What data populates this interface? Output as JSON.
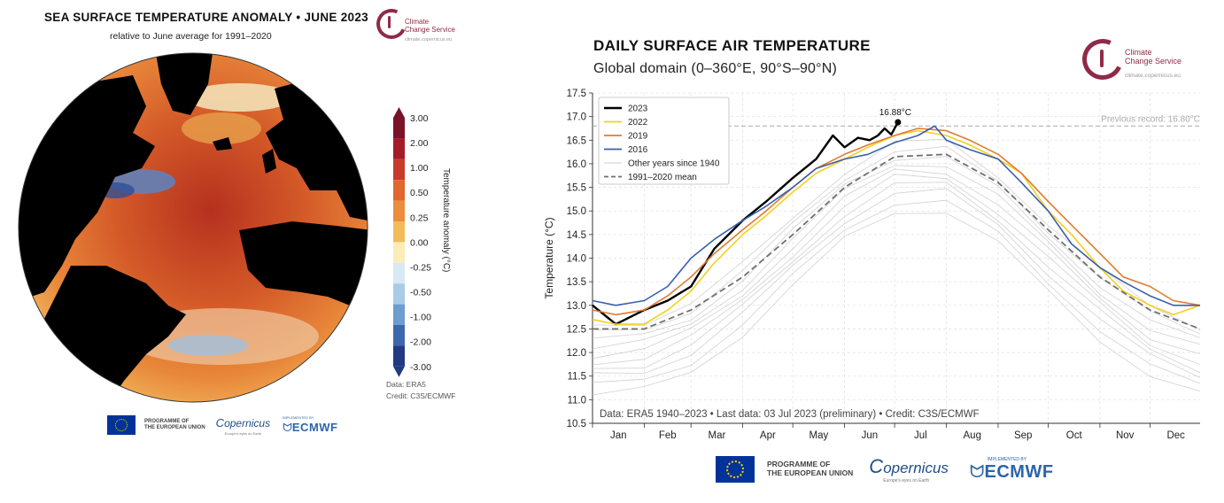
{
  "left": {
    "title": "SEA SURFACE TEMPERATURE ANOMALY • JUNE 2023",
    "subtitle": "relative to June average for 1991–2020",
    "colorbar": {
      "label": "Temperature anomaly (°C)",
      "ticks": [
        "3.00",
        "2.00",
        "1.00",
        "0.50",
        "0.25",
        "0.00",
        "-0.25",
        "-0.50",
        "-1.00",
        "-2.00",
        "-3.00"
      ],
      "colors": [
        "#7a1228",
        "#a61b2a",
        "#c83a2a",
        "#e0672e",
        "#eb8d3c",
        "#f3bc5a",
        "#fbecb8",
        "#d9e8f5",
        "#a9cbe8",
        "#6e9dcf",
        "#3c68ad",
        "#233a80"
      ]
    },
    "data_note": "Data: ERA5",
    "credit_note": "Credit: C3S/ECMWF"
  },
  "c3s": {
    "name_line1": "Climate",
    "name_line2": "Change Service",
    "url": "climate.copernicus.eu"
  },
  "footer": {
    "eu_line1": "PROGRAMME OF",
    "eu_line2": "THE EUROPEAN UNION",
    "copernicus": "opernicus",
    "copernicus_tag": "Europe's eyes on Earth",
    "ecmwf_tag": "IMPLEMENTED BY",
    "ecmwf": "ECMWF"
  },
  "right": {
    "title": "DAILY SURFACE AIR TEMPERATURE",
    "subtitle": "Global domain (0–360°E, 90°S–90°N)",
    "record_label": "Previous record: 16.80°C",
    "peak_label": "16.88°C",
    "bottom_note": "Data: ERA5 1940–2023 • Last data: 03 Jul 2023 (preliminary) • Credit: C3S/ECMWF"
  },
  "chart_data": {
    "type": "line",
    "title": "DAILY SURFACE AIR TEMPERATURE",
    "subtitle": "Global domain (0–360°E, 90°S–90°N)",
    "xlabel": "",
    "ylabel": "Temperature (°C)",
    "ylim": [
      10.5,
      17.5
    ],
    "yticks": [
      "10.5",
      "11.0",
      "11.5",
      "12.0",
      "12.5",
      "13.0",
      "13.5",
      "14.0",
      "14.5",
      "15.0",
      "15.5",
      "16.0",
      "16.5",
      "17.0",
      "17.5"
    ],
    "categories": [
      "Jan",
      "Feb",
      "Mar",
      "Apr",
      "May",
      "Jun",
      "Jul",
      "Aug",
      "Sep",
      "Oct",
      "Nov",
      "Dec"
    ],
    "grid": true,
    "legend_position": "top-left",
    "reference_line": {
      "label": "Previous record: 16.80°C",
      "value": 16.8
    },
    "series": [
      {
        "name": "2023",
        "color": "#000000",
        "x": [
          1,
          15,
          32,
          46,
          60,
          74,
          91,
          105,
          121,
          135,
          145,
          152,
          160,
          167,
          172,
          176,
          180,
          184
        ],
        "values": [
          13.0,
          12.6,
          12.9,
          13.1,
          13.4,
          14.2,
          14.8,
          15.2,
          15.7,
          16.1,
          16.6,
          16.35,
          16.55,
          16.5,
          16.6,
          16.75,
          16.62,
          16.88
        ]
      },
      {
        "name": "2022",
        "color": "#f2d021",
        "x": [
          1,
          15,
          32,
          46,
          60,
          74,
          91,
          105,
          121,
          135,
          152,
          166,
          182,
          196,
          213,
          227,
          244,
          258,
          274,
          288,
          305,
          319,
          335,
          349,
          365
        ],
        "values": [
          12.7,
          12.6,
          12.6,
          12.9,
          13.3,
          13.9,
          14.5,
          14.9,
          15.4,
          15.8,
          16.1,
          16.35,
          16.6,
          16.7,
          16.6,
          16.4,
          16.1,
          15.8,
          15.0,
          14.5,
          13.8,
          13.3,
          13.0,
          12.8,
          13.0
        ]
      },
      {
        "name": "2019",
        "color": "#e07b2e",
        "x": [
          1,
          15,
          32,
          46,
          60,
          74,
          91,
          105,
          121,
          135,
          152,
          166,
          182,
          196,
          213,
          227,
          244,
          258,
          274,
          288,
          305,
          319,
          335,
          349,
          365
        ],
        "values": [
          12.9,
          12.8,
          12.9,
          13.2,
          13.6,
          14.1,
          14.6,
          15.0,
          15.5,
          15.9,
          16.2,
          16.4,
          16.6,
          16.75,
          16.7,
          16.5,
          16.2,
          15.8,
          15.2,
          14.7,
          14.1,
          13.6,
          13.4,
          13.1,
          13.0
        ]
      },
      {
        "name": "2016",
        "color": "#3a5fab",
        "x": [
          1,
          15,
          32,
          46,
          60,
          74,
          91,
          105,
          121,
          135,
          152,
          166,
          182,
          196,
          206,
          213,
          227,
          244,
          258,
          274,
          288,
          305,
          319,
          335,
          349,
          365
        ],
        "values": [
          13.1,
          13.0,
          13.1,
          13.4,
          14.0,
          14.4,
          14.8,
          15.1,
          15.5,
          15.9,
          16.1,
          16.2,
          16.45,
          16.6,
          16.8,
          16.5,
          16.3,
          16.1,
          15.6,
          15.0,
          14.3,
          13.8,
          13.5,
          13.2,
          13.0,
          13.0
        ]
      },
      {
        "name": "Other years since 1940",
        "color": "#cccccc",
        "x": [
          1,
          32,
          60,
          91,
          121,
          152,
          182,
          213,
          244,
          274,
          305,
          335,
          365
        ],
        "values": [
          12.0,
          12.1,
          12.5,
          13.3,
          14.3,
          15.3,
          15.9,
          15.9,
          15.2,
          14.2,
          13.2,
          12.4,
          12.0
        ]
      },
      {
        "name": "1991-2020 mean",
        "color": "#707070",
        "x": [
          1,
          32,
          60,
          91,
          121,
          152,
          182,
          213,
          244,
          274,
          305,
          335,
          365
        ],
        "values": [
          12.5,
          12.5,
          12.9,
          13.6,
          14.5,
          15.5,
          16.15,
          16.2,
          15.6,
          14.6,
          13.6,
          12.9,
          12.5
        ]
      }
    ]
  }
}
